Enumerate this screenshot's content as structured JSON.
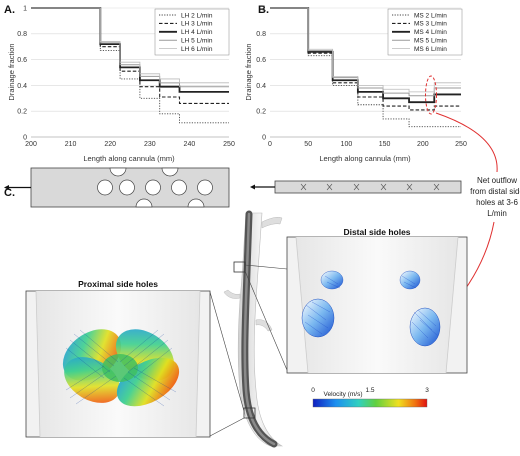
{
  "panels": {
    "a_label": "A.",
    "b_label": "B.",
    "c_label": "C."
  },
  "chart_data": [
    {
      "type": "line",
      "step": true,
      "ylabel": "Drainage fraction",
      "xlabel": "Length along cannula (mm)",
      "xlim": [
        200,
        250
      ],
      "ylim": [
        0,
        1
      ],
      "xticks": [
        "200",
        "210",
        "220",
        "230",
        "240",
        "250"
      ],
      "yticks": [
        "0",
        "0.2",
        "0.4",
        "0.6",
        "0.8",
        "1"
      ],
      "legend_position": "top-right",
      "x_edges": [
        217.5,
        222.5,
        227.5,
        232.5,
        237.5,
        250
      ],
      "series": [
        {
          "name": "LH 2 L/min",
          "style": "dotted",
          "color": "#444444",
          "values": [
            1,
            0.67,
            0.45,
            0.3,
            0.18,
            0.11
          ]
        },
        {
          "name": "LH 3 L/min",
          "style": "dashed",
          "color": "#222222",
          "values": [
            1,
            0.7,
            0.51,
            0.39,
            0.31,
            0.26
          ]
        },
        {
          "name": "LH 4 L/min",
          "style": "solid-thick",
          "color": "#222222",
          "values": [
            1,
            0.72,
            0.54,
            0.44,
            0.39,
            0.35
          ]
        },
        {
          "name": "LH 5 L/min",
          "style": "solid",
          "color": "#9a9a9a",
          "values": [
            1,
            0.73,
            0.56,
            0.47,
            0.42,
            0.39
          ]
        },
        {
          "name": "LH 6 L/min",
          "style": "solid-thin",
          "color": "#bbbbbb",
          "values": [
            1,
            0.74,
            0.58,
            0.49,
            0.45,
            0.42
          ]
        }
      ]
    },
    {
      "type": "line",
      "step": true,
      "ylabel": "Drainage fraction",
      "xlabel": "Length along cannula (mm)",
      "xlim": [
        0,
        250
      ],
      "ylim": [
        0,
        1
      ],
      "xticks": [
        "0",
        "50",
        "100",
        "150",
        "200",
        "250"
      ],
      "yticks": [
        "0",
        "0.2",
        "0.4",
        "0.6",
        "0.8",
        "1"
      ],
      "legend_position": "top-right",
      "x_edges": [
        50,
        82,
        115,
        148,
        182,
        215,
        250
      ],
      "series": [
        {
          "name": "MS 2 L/min",
          "style": "dotted",
          "color": "#444444",
          "values": [
            1,
            0.63,
            0.4,
            0.25,
            0.14,
            0.08,
            0.08
          ]
        },
        {
          "name": "MS 3 L/min",
          "style": "dashed",
          "color": "#222222",
          "values": [
            1,
            0.65,
            0.42,
            0.31,
            0.24,
            0.21,
            0.24
          ]
        },
        {
          "name": "MS 4 L/min",
          "style": "solid-thick",
          "color": "#222222",
          "values": [
            1,
            0.66,
            0.44,
            0.35,
            0.3,
            0.27,
            0.33
          ]
        },
        {
          "name": "MS 5 L/min",
          "style": "solid",
          "color": "#9a9a9a",
          "values": [
            1,
            0.67,
            0.46,
            0.38,
            0.34,
            0.32,
            0.38
          ]
        },
        {
          "name": "MS 6 L/min",
          "style": "solid-thin",
          "color": "#bbbbbb",
          "values": [
            1,
            0.68,
            0.47,
            0.4,
            0.37,
            0.35,
            0.42
          ]
        }
      ]
    }
  ],
  "annotation": {
    "lines": [
      "Net outflow",
      "from distal side",
      "holes at 3-6",
      "L/min"
    ],
    "color": "#e03030"
  },
  "insets": {
    "proximal_title": "Proximal side holes",
    "distal_title": "Distal side holes"
  },
  "colorbar": {
    "title": "Velocity (m/s)",
    "ticks": [
      "0",
      "1.5",
      "3"
    ]
  }
}
